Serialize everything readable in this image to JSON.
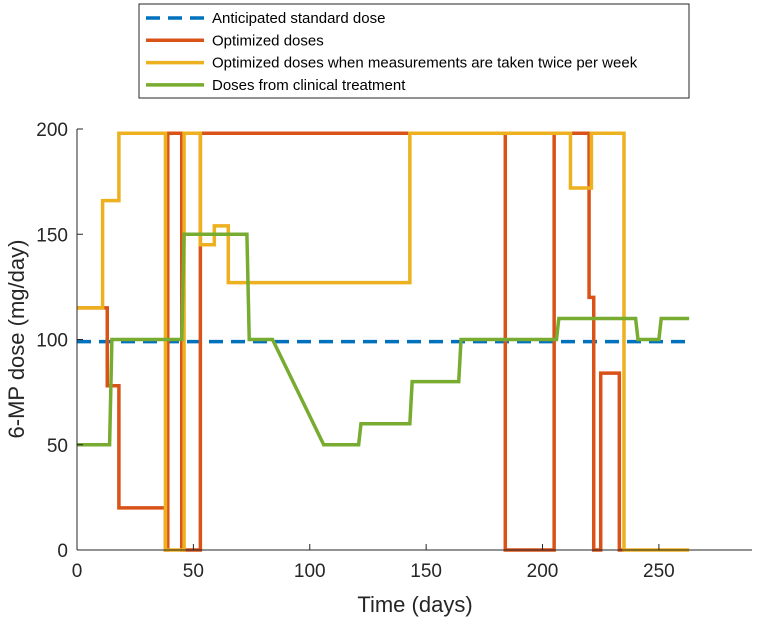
{
  "chart_data": {
    "type": "line",
    "xlabel": "Time (days)",
    "ylabel": "6-MP dose (mg/day)",
    "xlim": [
      0,
      290
    ],
    "ylim": [
      0,
      200
    ],
    "xticks": [
      "0",
      "50",
      "100",
      "150",
      "200",
      "250"
    ],
    "yticks": [
      "0",
      "50",
      "100",
      "150",
      "200"
    ],
    "legend_position": "top-center, outside plot",
    "series": [
      {
        "name": "Anticipated standard dose",
        "color": "#0072BD",
        "dash": true,
        "x": [
          0,
          263
        ],
        "y": [
          99,
          99
        ]
      },
      {
        "name": "Optimized doses",
        "color": "#D95319",
        "dash": false,
        "x": [
          0,
          13,
          13,
          18,
          18,
          38,
          38,
          39,
          39,
          45,
          45,
          53,
          53,
          143,
          143,
          184,
          184,
          205,
          205,
          220,
          220,
          222,
          222,
          225,
          225,
          233,
          233,
          235
        ],
        "y": [
          115,
          115,
          78,
          78,
          20,
          20,
          0,
          0,
          198,
          198,
          0,
          0,
          198,
          198,
          198,
          198,
          0,
          0,
          198,
          198,
          120,
          120,
          0,
          0,
          84,
          84,
          0,
          0
        ]
      },
      {
        "name": "Optimized doses when measurements are taken twice per week",
        "color": "#EDB120",
        "dash": false,
        "x": [
          0,
          11,
          11,
          18,
          18,
          38,
          38,
          46,
          46,
          53,
          53,
          59,
          59,
          65,
          65,
          143,
          143,
          212,
          212,
          221,
          221,
          235,
          235,
          263
        ],
        "y": [
          115,
          115,
          166,
          166,
          198,
          198,
          0,
          0,
          198,
          198,
          145,
          145,
          154,
          154,
          127,
          127,
          198,
          198,
          172,
          172,
          198,
          198,
          0,
          0
        ]
      },
      {
        "name": "Doses from clinical treatment",
        "color": "#77AC30",
        "dash": false,
        "x": [
          0,
          14,
          15,
          45,
          46,
          73,
          74,
          84,
          106,
          121,
          122,
          143,
          144,
          164,
          165,
          206,
          207,
          240,
          241,
          250,
          251,
          263
        ],
        "y": [
          50,
          50,
          100,
          100,
          150,
          150,
          100,
          100,
          50,
          50,
          60,
          60,
          80,
          80,
          100,
          100,
          110,
          110,
          100,
          100,
          110,
          110
        ]
      }
    ]
  }
}
